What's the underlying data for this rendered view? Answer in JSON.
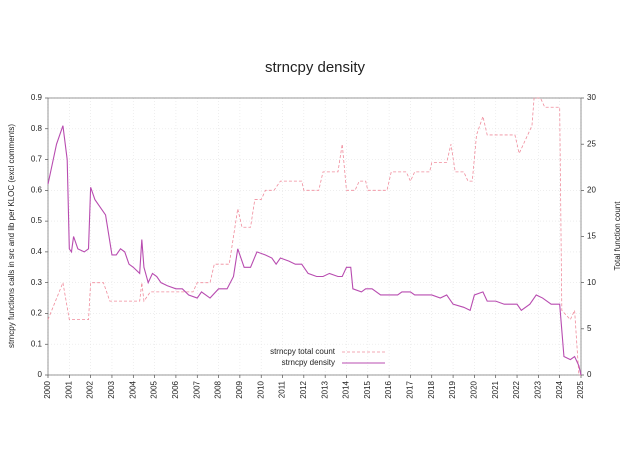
{
  "chart_data": {
    "type": "line",
    "title": "strncpy density",
    "y_label": "strncpy functions calls in src and lib per KLOC (excl comments)",
    "y2_label": "Total function count",
    "xlim": [
      2000,
      2025
    ],
    "xticks": [
      2000,
      2001,
      2002,
      2003,
      2004,
      2005,
      2006,
      2007,
      2008,
      2009,
      2010,
      2011,
      2012,
      2013,
      2014,
      2015,
      2016,
      2017,
      2018,
      2019,
      2020,
      2021,
      2022,
      2023,
      2024,
      2025
    ],
    "ylim": [
      0,
      0.9
    ],
    "yticks": [
      0,
      0.1,
      0.2,
      0.3,
      0.4,
      0.5,
      0.6,
      0.7,
      0.8,
      0.9
    ],
    "y2lim": [
      0,
      30
    ],
    "y2ticks": [
      0,
      5,
      10,
      15,
      20,
      25,
      30
    ],
    "grid": true,
    "legend": "bottom",
    "series": [
      {
        "name": "strncpy total count",
        "color": "#f08c9c",
        "dashed": true,
        "axis": "y2",
        "x": [
          2000.0,
          2000.7,
          2001.0,
          2001.9,
          2002.0,
          2002.6,
          2002.9,
          2004.3,
          2004.4,
          2004.5,
          2004.8,
          2006.2,
          2006.8,
          2007.0,
          2007.6,
          2007.8,
          2008.5,
          2008.9,
          2009.1,
          2009.5,
          2009.7,
          2010.0,
          2010.2,
          2010.6,
          2010.9,
          2011.9,
          2012.0,
          2012.7,
          2012.9,
          2013.6,
          2013.8,
          2014.0,
          2014.4,
          2014.6,
          2014.9,
          2015.0,
          2015.9,
          2016.1,
          2016.8,
          2017.0,
          2017.2,
          2017.9,
          2018.0,
          2018.7,
          2018.9,
          2019.1,
          2019.5,
          2019.7,
          2019.9,
          2020.1,
          2020.4,
          2020.6,
          2021.9,
          2022.1,
          2022.7,
          2022.8,
          2023.1,
          2023.3,
          2024.0,
          2024.1,
          2024.5,
          2024.7,
          2024.9,
          2025.0
        ],
        "values": [
          6,
          10,
          6,
          6,
          10,
          10,
          8,
          8,
          10,
          8,
          9,
          9,
          9,
          10,
          10,
          12,
          12,
          18,
          16,
          16,
          19,
          19,
          20,
          20,
          21,
          21,
          20,
          20,
          22,
          22,
          25,
          20,
          20,
          21,
          21,
          20,
          20,
          22,
          22,
          21,
          22,
          22,
          23,
          23,
          25,
          22,
          22,
          21,
          21,
          26,
          28,
          26,
          26,
          24,
          27,
          30,
          30,
          29,
          29,
          7,
          6,
          7,
          0,
          0
        ]
      },
      {
        "name": "strncpy density",
        "color": "#b84cb0",
        "dashed": false,
        "axis": "y",
        "x": [
          2000.0,
          2000.4,
          2000.7,
          2000.9,
          2001.0,
          2001.1,
          2001.2,
          2001.4,
          2001.7,
          2001.9,
          2002.0,
          2002.2,
          2002.5,
          2002.7,
          2003.0,
          2003.2,
          2003.4,
          2003.6,
          2003.8,
          2004.0,
          2004.3,
          2004.4,
          2004.5,
          2004.7,
          2004.9,
          2005.1,
          2005.3,
          2005.6,
          2006.0,
          2006.3,
          2006.6,
          2007.0,
          2007.2,
          2007.6,
          2008.0,
          2008.4,
          2008.7,
          2008.9,
          2009.2,
          2009.5,
          2009.8,
          2010.2,
          2010.5,
          2010.7,
          2010.9,
          2011.3,
          2011.6,
          2011.9,
          2012.2,
          2012.6,
          2012.9,
          2013.2,
          2013.6,
          2013.8,
          2014.0,
          2014.2,
          2014.3,
          2014.7,
          2014.9,
          2015.2,
          2015.6,
          2016.0,
          2016.4,
          2016.6,
          2017.0,
          2017.2,
          2017.6,
          2018.0,
          2018.4,
          2018.7,
          2019.0,
          2019.5,
          2019.8,
          2020.0,
          2020.4,
          2020.6,
          2021.0,
          2021.4,
          2021.8,
          2022.0,
          2022.2,
          2022.6,
          2022.9,
          2023.2,
          2023.6,
          2024.0,
          2024.2,
          2024.5,
          2024.7,
          2024.9,
          2025.0
        ],
        "values": [
          0.62,
          0.75,
          0.81,
          0.7,
          0.41,
          0.4,
          0.45,
          0.41,
          0.4,
          0.41,
          0.61,
          0.57,
          0.54,
          0.52,
          0.39,
          0.39,
          0.41,
          0.4,
          0.36,
          0.35,
          0.33,
          0.44,
          0.35,
          0.3,
          0.33,
          0.32,
          0.3,
          0.29,
          0.28,
          0.28,
          0.26,
          0.25,
          0.27,
          0.25,
          0.28,
          0.28,
          0.32,
          0.41,
          0.35,
          0.35,
          0.4,
          0.39,
          0.38,
          0.36,
          0.38,
          0.37,
          0.36,
          0.36,
          0.33,
          0.32,
          0.32,
          0.33,
          0.32,
          0.32,
          0.35,
          0.35,
          0.28,
          0.27,
          0.28,
          0.28,
          0.26,
          0.26,
          0.26,
          0.27,
          0.27,
          0.26,
          0.26,
          0.26,
          0.25,
          0.26,
          0.23,
          0.22,
          0.21,
          0.26,
          0.27,
          0.24,
          0.24,
          0.23,
          0.23,
          0.23,
          0.21,
          0.23,
          0.26,
          0.25,
          0.23,
          0.23,
          0.06,
          0.05,
          0.06,
          0.03,
          0.0
        ]
      }
    ]
  }
}
